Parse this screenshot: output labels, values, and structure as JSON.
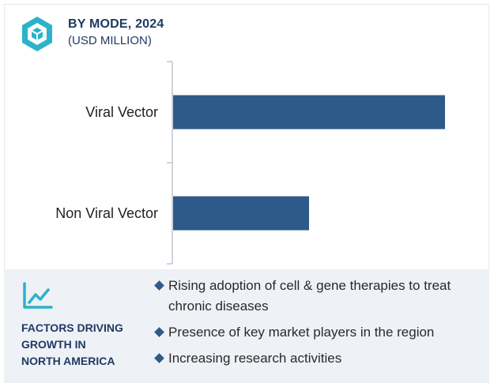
{
  "header": {
    "title": "BY MODE, 2024",
    "subtitle": "(USD MILLION)",
    "icon": "cube-icon"
  },
  "colors": {
    "bar": "#2e5a8a",
    "accent": "#2bb3c9",
    "heading": "#1f3a63",
    "panel": "#eef1f6"
  },
  "chart_data": {
    "type": "bar",
    "orientation": "horizontal",
    "categories": [
      "Viral Vector",
      "Non Viral Vector"
    ],
    "values": [
      100,
      50
    ],
    "xlim": [
      0,
      100
    ],
    "title": "BY MODE, 2024",
    "xlabel": "",
    "ylabel": "",
    "grid": false
  },
  "factors": {
    "icon": "trend-chart-icon",
    "title_lines": [
      "FACTORS DRIVING",
      "GROWTH IN",
      "NORTH AMERICA"
    ],
    "items": [
      "Rising adoption of cell & gene therapies to treat chronic diseases",
      "Presence of key market players in the region",
      "Increasing research activities"
    ]
  }
}
